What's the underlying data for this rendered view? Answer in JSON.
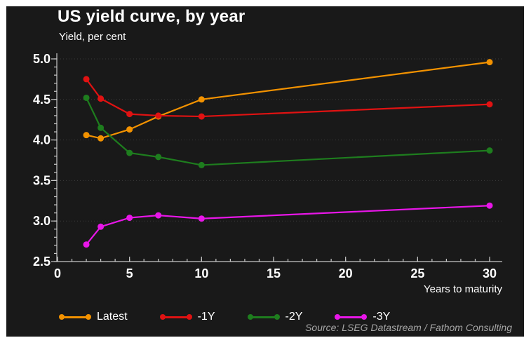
{
  "header": {
    "title": "US yield curve, by year",
    "subtitle": "Yield, per cent"
  },
  "chart_data": {
    "type": "line",
    "x": [
      2,
      3,
      5,
      7,
      10,
      30
    ],
    "series": [
      {
        "name": "Latest",
        "color": "#F39200",
        "values": [
          4.06,
          4.02,
          4.13,
          4.29,
          4.5,
          4.96
        ]
      },
      {
        "name": "-1Y",
        "color": "#E01212",
        "values": [
          4.75,
          4.51,
          4.32,
          4.3,
          4.29,
          4.44
        ]
      },
      {
        "name": "-2Y",
        "color": "#1E7D1E",
        "values": [
          4.52,
          4.15,
          3.84,
          3.79,
          3.69,
          3.87
        ]
      },
      {
        "name": "-3Y",
        "color": "#E816E8",
        "values": [
          2.71,
          2.93,
          3.04,
          3.07,
          3.03,
          3.19
        ]
      }
    ],
    "xlabel": "Years to maturity",
    "ylabel": "Yield, per cent",
    "x_ticks": [
      0,
      5,
      10,
      15,
      20,
      25,
      30
    ],
    "y_ticks": [
      5.0,
      4.5,
      4.0,
      3.5,
      3.0,
      2.5
    ],
    "xlim": [
      0,
      30.875
    ],
    "ylim": [
      2.5,
      5.0
    ],
    "x_minor_step": 1,
    "y_minor_step": 0.1,
    "grid": "horizontal-dotted",
    "legend_position": "bottom"
  },
  "footer": {
    "source": "Source: LSEG Datastream / Fathom Consulting"
  },
  "colors": {
    "background": "#191919",
    "frame": "#ffffff",
    "axis": "#c8c8c8",
    "grid": "#3a3a3a",
    "text": "#ffffff",
    "source_text": "#a6a6a6"
  }
}
